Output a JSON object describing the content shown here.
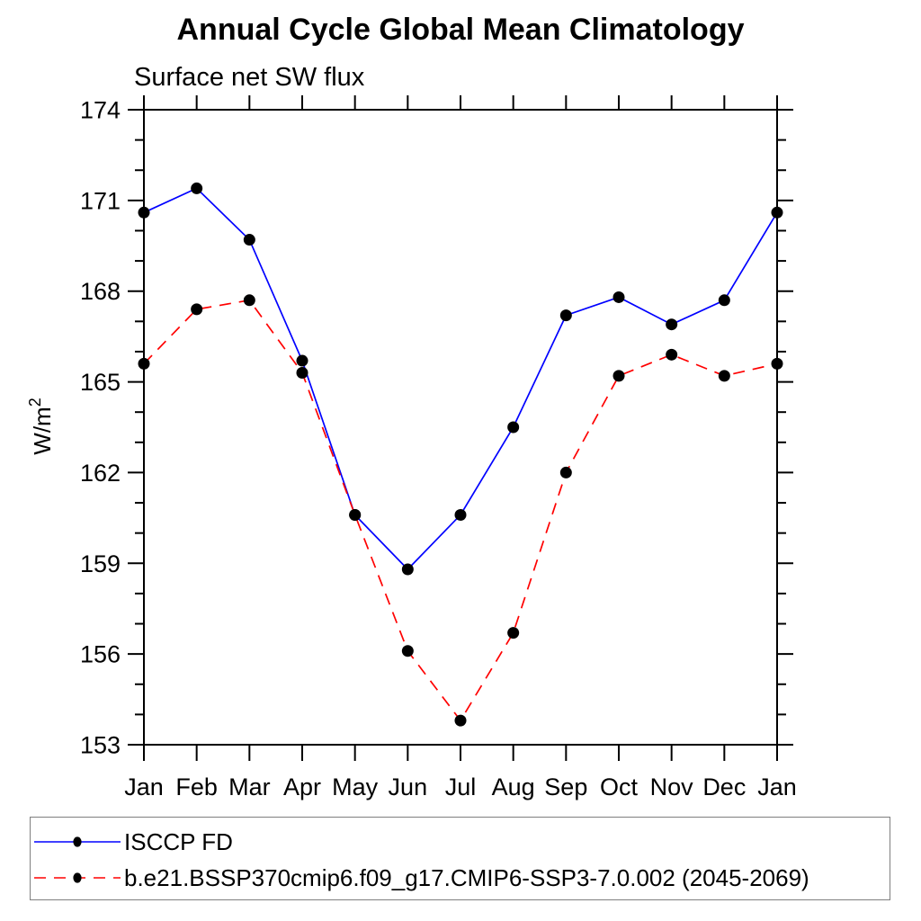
{
  "page": {
    "background": "#ffffff"
  },
  "chart_data": {
    "type": "line",
    "title": "Annual Cycle Global Mean Climatology",
    "subtitle": "Surface net SW flux",
    "ylabel_main": "W/m",
    "ylabel_sup": "2",
    "x": [
      "Jan",
      "Feb",
      "Mar",
      "Apr",
      "May",
      "Jun",
      "Jul",
      "Aug",
      "Sep",
      "Oct",
      "Nov",
      "Dec",
      "Jan"
    ],
    "ylim": [
      153,
      174
    ],
    "ytick_major_step": 3,
    "ytick_minor_step": 1,
    "ytick_labels": [
      "153",
      "156",
      "159",
      "162",
      "165",
      "168",
      "171",
      "174"
    ],
    "grid": false,
    "legend_position": "bottom-left-box",
    "axis_color": "#000000",
    "marker_color": "#000000",
    "series": [
      {
        "name": "ISCCP FD",
        "color": "#0000ff",
        "line": "solid",
        "marker": "circle",
        "values": [
          170.6,
          171.4,
          169.7,
          165.7,
          160.6,
          158.8,
          160.6,
          163.5,
          167.2,
          167.8,
          166.9,
          167.7,
          170.6
        ]
      },
      {
        "name": "b.e21.BSSP370cmip6.f09_g17.CMIP6-SSP3-7.0.002 (2045-2069)",
        "color": "#ff0000",
        "line": "dashed",
        "marker": "circle",
        "values": [
          165.6,
          167.4,
          167.7,
          165.3,
          160.6,
          156.1,
          153.8,
          156.7,
          162.0,
          165.2,
          165.9,
          165.2,
          165.6
        ]
      }
    ]
  }
}
